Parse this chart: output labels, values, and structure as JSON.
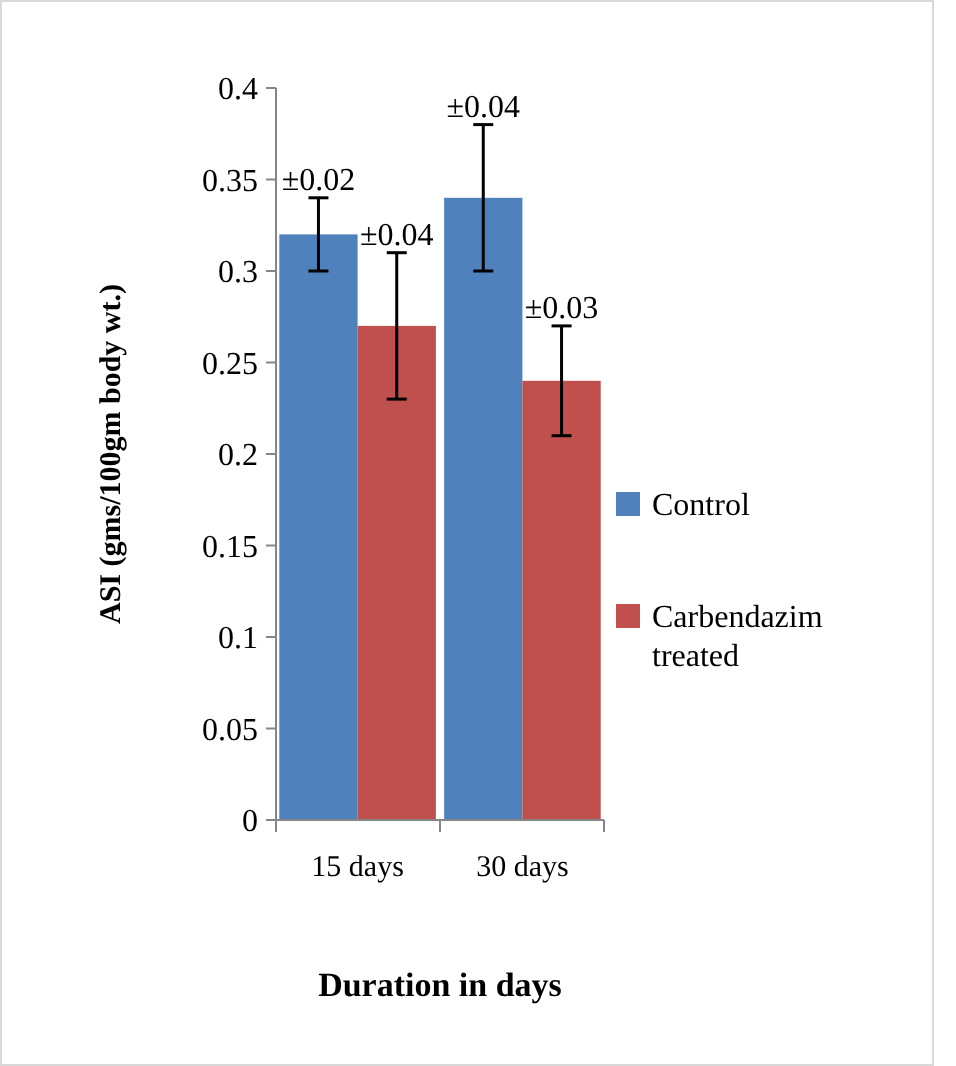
{
  "chart_data": {
    "type": "bar",
    "xlabel": "Duration in days",
    "ylabel": "ASI (gms/100gm body wt.)",
    "categories": [
      "15 days",
      "30 days"
    ],
    "series": [
      {
        "name": "Control",
        "color": "#4f81bd",
        "values": [
          0.32,
          0.34
        ],
        "errors": [
          0.02,
          0.04
        ]
      },
      {
        "name": "Carbendazim treated",
        "color": "#c0504d",
        "values": [
          0.27,
          0.24
        ],
        "errors": [
          0.04,
          0.03
        ]
      }
    ],
    "ylim": [
      0,
      0.4
    ],
    "yticks": [
      0,
      0.05,
      0.1,
      0.15,
      0.2,
      0.25,
      0.3,
      0.35,
      0.4
    ],
    "grid": false,
    "legend": "right",
    "annotations": [
      "±0.02",
      "±0.04",
      "±0.04",
      "±0.03"
    ]
  }
}
